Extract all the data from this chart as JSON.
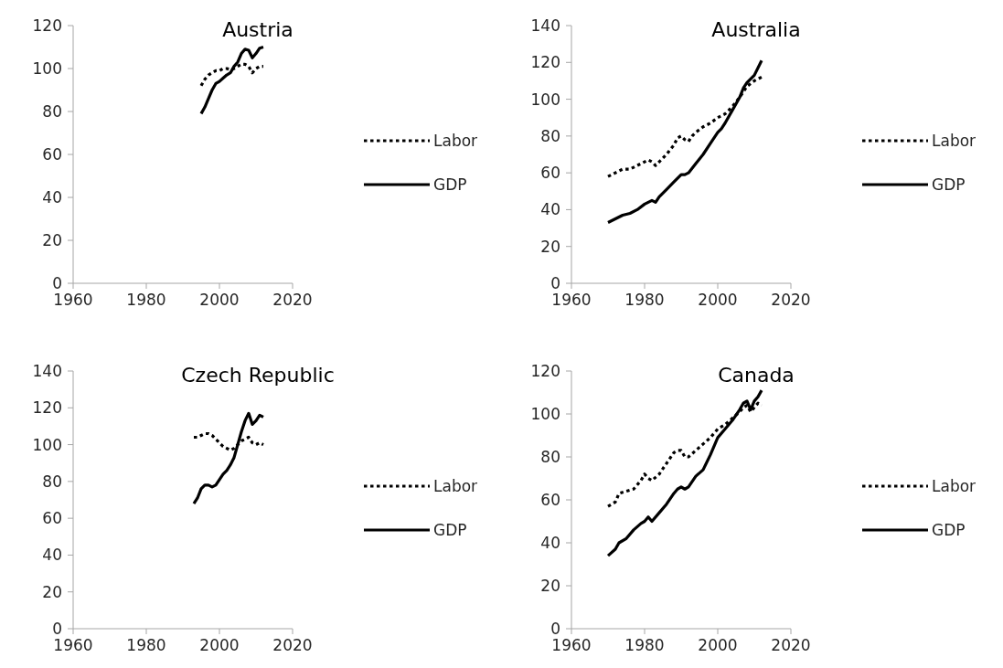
{
  "chart_data": [
    {
      "type": "line",
      "title": "Austria",
      "xlim": [
        1960,
        2020
      ],
      "xticks": [
        1960,
        1980,
        2000,
        2020
      ],
      "ylim": [
        0,
        120
      ],
      "yticks": [
        0,
        20,
        40,
        60,
        80,
        100,
        120
      ],
      "legend": "right",
      "grid": false,
      "series": [
        {
          "name": "Labor",
          "color": "#000000",
          "line_style": "dotted",
          "x": [
            1995,
            1996,
            1997,
            1998,
            1999,
            2000,
            2001,
            2002,
            2003,
            2004,
            2005,
            2006,
            2007,
            2008,
            2009,
            2010,
            2011,
            2012
          ],
          "values": [
            92,
            95,
            97,
            98,
            99,
            99,
            100,
            100,
            99.5,
            100,
            101,
            102,
            102,
            101,
            98,
            100,
            101,
            101
          ]
        },
        {
          "name": "GDP",
          "color": "#000000",
          "line_style": "solid",
          "x": [
            1995,
            1996,
            1997,
            1998,
            1999,
            2000,
            2001,
            2002,
            2003,
            2004,
            2005,
            2006,
            2007,
            2008,
            2009,
            2010,
            2011,
            2012
          ],
          "values": [
            79,
            82,
            86,
            90,
            93,
            94,
            95.5,
            97,
            98,
            101,
            103,
            107,
            109,
            108.5,
            105,
            107,
            109.5,
            110
          ]
        }
      ]
    },
    {
      "type": "line",
      "title": "Australia",
      "xlim": [
        1960,
        2020
      ],
      "xticks": [
        1960,
        1980,
        2000,
        2020
      ],
      "ylim": [
        0,
        140
      ],
      "yticks": [
        0,
        20,
        40,
        60,
        80,
        100,
        120,
        140
      ],
      "legend": "right",
      "grid": false,
      "series": [
        {
          "name": "Labor",
          "color": "#000000",
          "line_style": "dotted",
          "x": [
            1970,
            1972,
            1974,
            1976,
            1978,
            1980,
            1981,
            1982,
            1983,
            1984,
            1986,
            1988,
            1989,
            1990,
            1991,
            1992,
            1993,
            1994,
            1996,
            1998,
            2000,
            2002,
            2004,
            2006,
            2008,
            2010,
            2012
          ],
          "values": [
            58,
            60,
            62,
            62,
            64,
            66,
            67,
            66,
            64,
            66,
            70,
            75,
            79,
            80,
            78,
            77,
            80,
            82,
            85,
            87,
            90,
            92,
            96,
            101,
            107,
            110,
            112
          ]
        },
        {
          "name": "GDP",
          "color": "#000000",
          "line_style": "solid",
          "x": [
            1970,
            1972,
            1974,
            1976,
            1978,
            1980,
            1982,
            1983,
            1984,
            1986,
            1988,
            1990,
            1991,
            1992,
            1994,
            1996,
            1998,
            2000,
            2001,
            2002,
            2004,
            2006,
            2007,
            2008,
            2010,
            2012
          ],
          "values": [
            33,
            35,
            37,
            38,
            40,
            43,
            45,
            44,
            47,
            51,
            55,
            59,
            59,
            60,
            65,
            70,
            76,
            82,
            84,
            87,
            94,
            101,
            106,
            109,
            113,
            121
          ]
        }
      ]
    },
    {
      "type": "line",
      "title": "Czech Republic",
      "xlim": [
        1960,
        2020
      ],
      "xticks": [
        1960,
        1980,
        2000,
        2020
      ],
      "ylim": [
        0,
        140
      ],
      "yticks": [
        0,
        20,
        40,
        60,
        80,
        100,
        120,
        140
      ],
      "legend": "right",
      "grid": false,
      "series": [
        {
          "name": "Labor",
          "color": "#000000",
          "line_style": "dotted",
          "x": [
            1993,
            1994,
            1995,
            1996,
            1997,
            1998,
            1999,
            2000,
            2001,
            2002,
            2003,
            2004,
            2005,
            2006,
            2007,
            2008,
            2009,
            2010,
            2011,
            2012
          ],
          "values": [
            104,
            104,
            105,
            106,
            106,
            105,
            103,
            101,
            99,
            98,
            97,
            98,
            100,
            102,
            103,
            104,
            101,
            100,
            101,
            100
          ]
        },
        {
          "name": "GDP",
          "color": "#000000",
          "line_style": "solid",
          "x": [
            1993,
            1994,
            1995,
            1996,
            1997,
            1998,
            1999,
            2000,
            2001,
            2002,
            2003,
            2004,
            2005,
            2006,
            2007,
            2008,
            2009,
            2010,
            2011,
            2012
          ],
          "values": [
            68,
            71,
            76,
            78,
            78,
            77,
            78,
            81,
            84,
            86,
            89,
            93,
            100,
            107,
            113,
            117,
            111,
            113,
            116,
            115
          ]
        }
      ]
    },
    {
      "type": "line",
      "title": "Canada",
      "xlim": [
        1960,
        2020
      ],
      "xticks": [
        1960,
        1980,
        2000,
        2020
      ],
      "ylim": [
        0,
        120
      ],
      "yticks": [
        0,
        20,
        40,
        60,
        80,
        100,
        120
      ],
      "legend": "right",
      "grid": false,
      "series": [
        {
          "name": "Labor",
          "color": "#000000",
          "line_style": "dotted",
          "x": [
            1970,
            1972,
            1973,
            1975,
            1977,
            1979,
            1980,
            1981,
            1982,
            1984,
            1986,
            1988,
            1989,
            1990,
            1991,
            1992,
            1994,
            1996,
            1998,
            2000,
            2002,
            2004,
            2006,
            2007,
            2008,
            2009,
            2010,
            2011,
            2012
          ],
          "values": [
            57,
            59,
            63,
            64,
            65,
            69,
            72,
            70,
            69,
            72,
            77,
            82,
            83,
            83,
            80,
            80,
            83,
            86,
            89,
            93,
            95,
            98,
            101,
            103,
            104,
            101,
            103,
            105,
            104
          ]
        },
        {
          "name": "GDP",
          "color": "#000000",
          "line_style": "solid",
          "x": [
            1970,
            1972,
            1973,
            1975,
            1977,
            1979,
            1980,
            1981,
            1982,
            1984,
            1986,
            1988,
            1989,
            1990,
            1991,
            1992,
            1994,
            1996,
            1998,
            2000,
            2002,
            2004,
            2006,
            2007,
            2008,
            2009,
            2010,
            2011,
            2012
          ],
          "values": [
            34,
            37,
            40,
            42,
            46,
            49,
            50,
            52,
            50,
            54,
            58,
            63,
            65,
            66,
            65,
            66,
            71,
            74,
            81,
            89,
            93,
            97,
            102,
            105,
            106,
            102,
            106,
            108,
            111
          ]
        }
      ]
    }
  ]
}
